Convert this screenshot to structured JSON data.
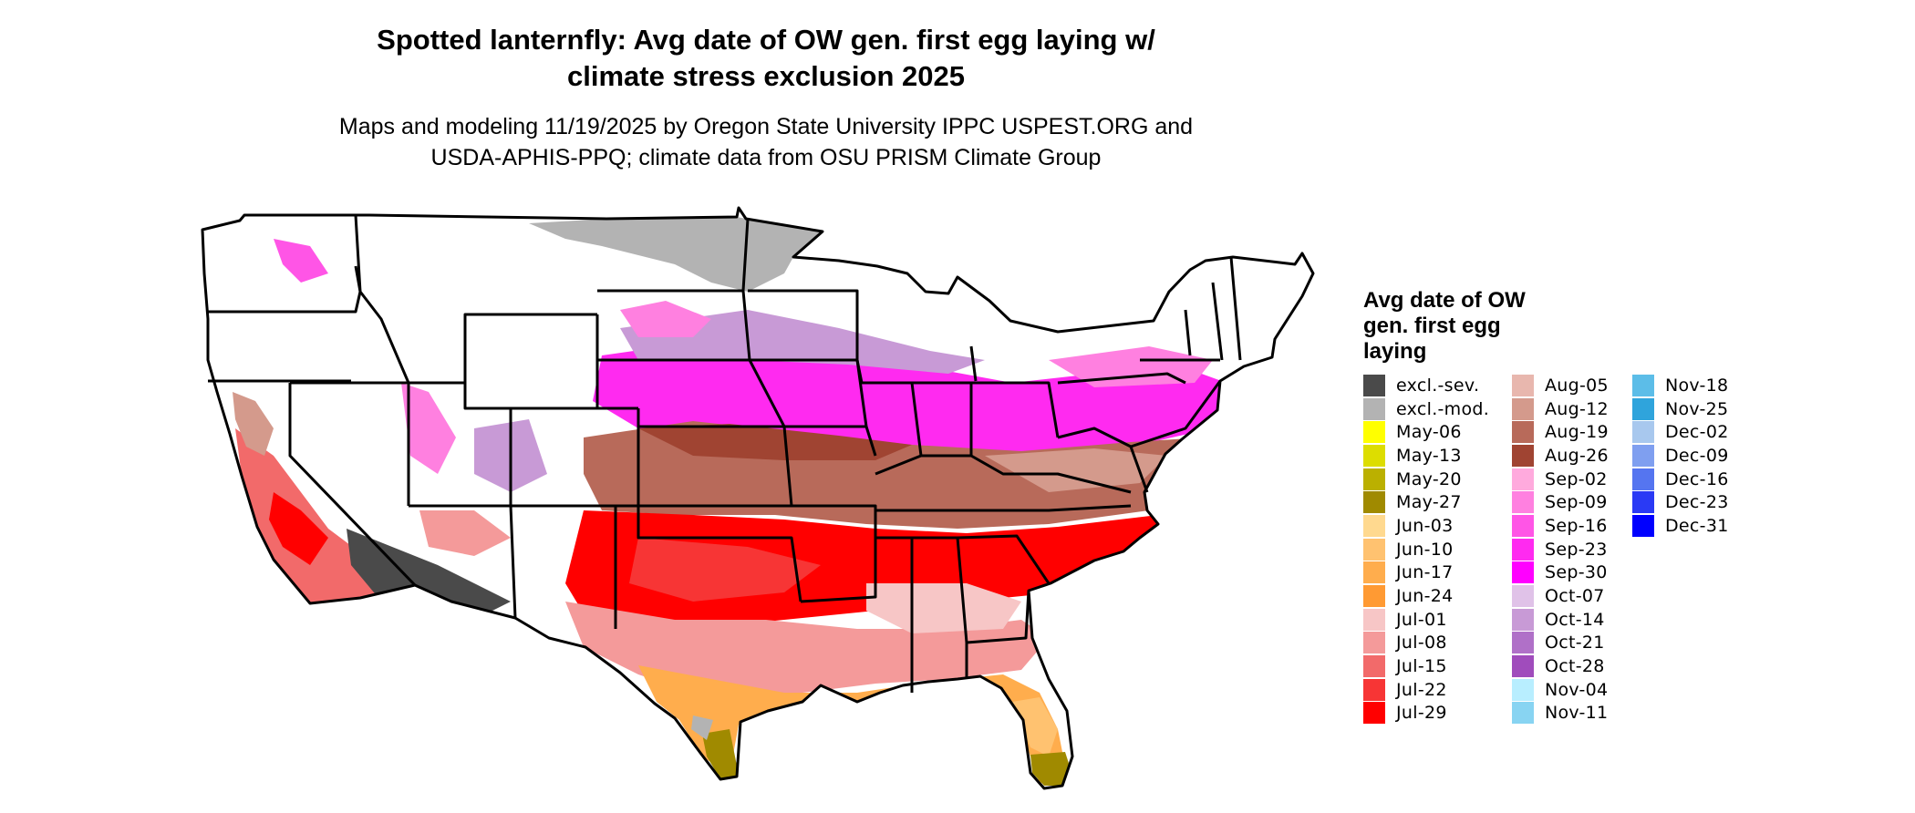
{
  "header": {
    "title_line1": "Spotted lanternfly: Avg date of OW gen. first egg laying w/",
    "title_line2": "climate stress exclusion 2025",
    "subtitle_line1": "Maps and modeling 11/19/2025 by Oregon State University IPPC USPEST.ORG and",
    "subtitle_line2": "USDA-APHIS-PPQ; climate data from OSU PRISM Climate Group"
  },
  "legend": {
    "title_line1": "Avg date of OW",
    "title_line2": "gen. first egg",
    "title_line3": "laying",
    "columns": [
      [
        {
          "label": "excl.-sev.",
          "color": "#4a4a4a"
        },
        {
          "label": "excl.-mod.",
          "color": "#b3b3b3"
        },
        {
          "label": "May-06",
          "color": "#ffff00"
        },
        {
          "label": "May-13",
          "color": "#dddd00"
        },
        {
          "label": "May-20",
          "color": "#bbb000"
        },
        {
          "label": "May-27",
          "color": "#a08a00"
        },
        {
          "label": "Jun-03",
          "color": "#ffd98f"
        },
        {
          "label": "Jun-10",
          "color": "#ffc270"
        },
        {
          "label": "Jun-17",
          "color": "#ffad4d"
        },
        {
          "label": "Jun-24",
          "color": "#ff9a33"
        },
        {
          "label": "Jul-01",
          "color": "#f7c6c6"
        },
        {
          "label": "Jul-08",
          "color": "#f49a9a"
        },
        {
          "label": "Jul-15",
          "color": "#f26a6a"
        },
        {
          "label": "Jul-22",
          "color": "#f73535"
        },
        {
          "label": "Jul-29",
          "color": "#ff0000"
        }
      ],
      [
        {
          "label": "Aug-05",
          "color": "#e8b7ae"
        },
        {
          "label": "Aug-12",
          "color": "#d49a8c"
        },
        {
          "label": "Aug-19",
          "color": "#b86a5a"
        },
        {
          "label": "Aug-26",
          "color": "#a04432"
        },
        {
          "label": "Sep-02",
          "color": "#ffaadd"
        },
        {
          "label": "Sep-09",
          "color": "#ff80e0"
        },
        {
          "label": "Sep-16",
          "color": "#ff55e6"
        },
        {
          "label": "Sep-23",
          "color": "#ff2af0"
        },
        {
          "label": "Sep-30",
          "color": "#ff00ff"
        },
        {
          "label": "Oct-07",
          "color": "#e0c2e8"
        },
        {
          "label": "Oct-14",
          "color": "#c89ad6"
        },
        {
          "label": "Oct-21",
          "color": "#b070c8"
        },
        {
          "label": "Oct-28",
          "color": "#a04cbc"
        },
        {
          "label": "Nov-04",
          "color": "#b8eeff"
        },
        {
          "label": "Nov-11",
          "color": "#88d4f2"
        }
      ],
      [
        {
          "label": "Nov-18",
          "color": "#5cbde8"
        },
        {
          "label": "Nov-25",
          "color": "#2fa4dc"
        },
        {
          "label": "Dec-02",
          "color": "#a8c8ee"
        },
        {
          "label": "Dec-09",
          "color": "#7f9ff0"
        },
        {
          "label": "Dec-16",
          "color": "#5575f0"
        },
        {
          "label": "Dec-23",
          "color": "#2a3af5"
        },
        {
          "label": "Dec-31",
          "color": "#0000ff"
        }
      ]
    ]
  },
  "colors": {
    "outline": "#000000",
    "background": "#ffffff"
  }
}
